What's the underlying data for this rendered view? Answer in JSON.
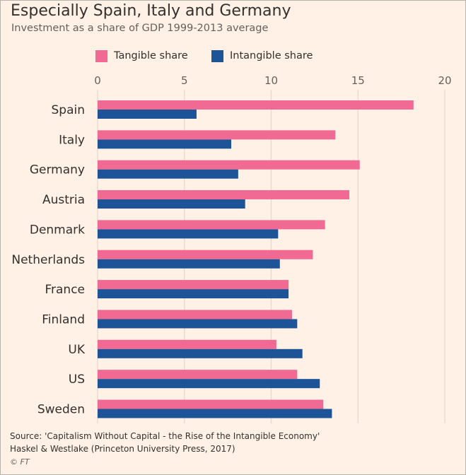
{
  "header": {
    "title": "Especially Spain, Italy and Germany",
    "subtitle": "Investment as a share of GDP 1999-2013 average"
  },
  "legend": {
    "tangible": "Tangible share",
    "intangible": "Intangible share"
  },
  "colors": {
    "tangible": "#f06a93",
    "intangible": "#1d5497",
    "background": "#fff1e5",
    "grid": "#e1d8cf",
    "text": "#33302e"
  },
  "chart_data": {
    "type": "bar",
    "orientation": "horizontal",
    "title": "Especially Spain, Italy and Germany",
    "subtitle": "Investment as a share of GDP 1999-2013 average",
    "categories": [
      "Spain",
      "Italy",
      "Germany",
      "Austria",
      "Denmark",
      "Netherlands",
      "France",
      "Finland",
      "UK",
      "US",
      "Sweden"
    ],
    "series": [
      {
        "name": "Tangible share",
        "values": [
          18.2,
          13.7,
          15.1,
          14.5,
          13.1,
          12.4,
          11.0,
          11.2,
          10.3,
          11.5,
          13.0
        ]
      },
      {
        "name": "Intangible share",
        "values": [
          5.7,
          7.7,
          8.1,
          8.5,
          10.4,
          10.5,
          11.0,
          11.5,
          11.8,
          12.8,
          13.5
        ]
      }
    ],
    "xticks": [
      0,
      5,
      10,
      15,
      20
    ],
    "xlim": [
      0,
      20
    ],
    "xaxis_position": "top",
    "grid": true,
    "legend_position": "top-left"
  },
  "footer": {
    "source_line1": "Source: 'Capitalism Without Capital - the Rise of the Intangible Economy'",
    "source_line2": "Haskel & Westlake (Princeton University Press, 2017)",
    "credit": "© FT"
  }
}
